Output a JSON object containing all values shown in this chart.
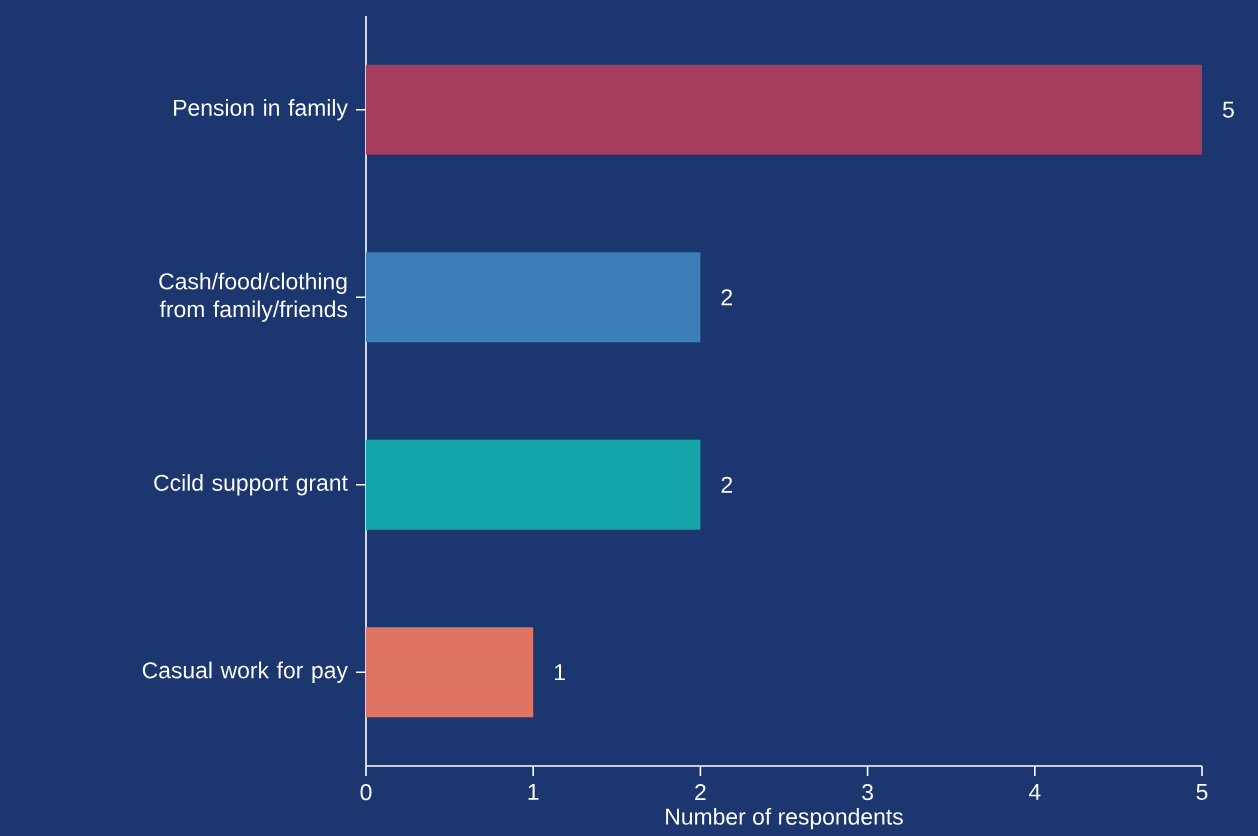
{
  "chart_data": {
    "type": "bar",
    "orientation": "horizontal",
    "xlabel": "Number of respondents",
    "categories": [
      "Pension in family",
      "Cash/food/clothing from family/friends",
      "Ccild support grant",
      "Casual work for pay"
    ],
    "values": [
      5,
      2,
      2,
      1
    ],
    "colors": [
      "#a63d5d",
      "#3b7fb8",
      "#14a5a9",
      "#df7464"
    ],
    "xlim": [
      0,
      5
    ],
    "xticks": [
      0,
      1,
      2,
      3,
      4,
      5
    ],
    "data_labels": true
  }
}
